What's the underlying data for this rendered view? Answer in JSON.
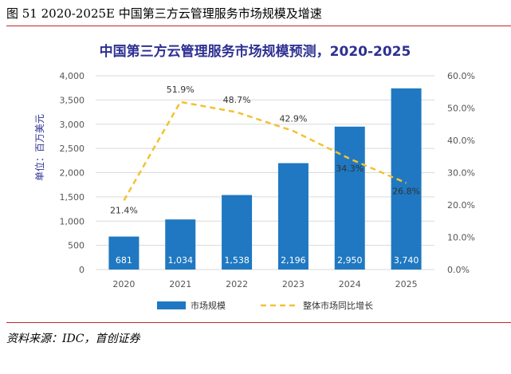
{
  "figure_caption": "图 51 2020-2025E 中国第三方云管理服务市场规模及增速",
  "source_note": "资料来源：IDC，首创证券",
  "colors": {
    "bar": "#1f78c1",
    "line": "#f2c232",
    "title": "#2e3192",
    "axis_text": "#555555",
    "rule": "#c0282c",
    "grid": "#d9d9d9"
  },
  "chart_data": {
    "type": "bar",
    "title": "中国第三方云管理服务市场规模预测，2020-2025",
    "ylabel": "单位：百万美元",
    "categories": [
      "2020",
      "2021",
      "2022",
      "2023",
      "2024",
      "2025"
    ],
    "ylim": [
      0,
      4000
    ],
    "yticks": [
      "0",
      "500",
      "1,000",
      "1,500",
      "2,000",
      "2,500",
      "3,000",
      "3,500",
      "4,000"
    ],
    "y2lim": [
      0,
      60
    ],
    "y2ticks": [
      "0.0%",
      "10.0%",
      "20.0%",
      "30.0%",
      "40.0%",
      "50.0%",
      "60.0%"
    ],
    "grid": true,
    "legend_position": "bottom",
    "series": [
      {
        "name": "市场规模",
        "type": "bar",
        "axis": "left",
        "values": [
          681,
          1034,
          1538,
          2196,
          2950,
          3740
        ],
        "labels": [
          "681",
          "1,034",
          "1,538",
          "2,196",
          "2,950",
          "3,740"
        ]
      },
      {
        "name": "整体市场同比增长",
        "type": "line",
        "style": "dashed",
        "axis": "right",
        "values": [
          21.4,
          51.9,
          48.7,
          42.9,
          34.3,
          26.8
        ],
        "labels": [
          "21.4%",
          "51.9%",
          "48.7%",
          "42.9%",
          "34.3%",
          "26.8%"
        ]
      }
    ]
  }
}
